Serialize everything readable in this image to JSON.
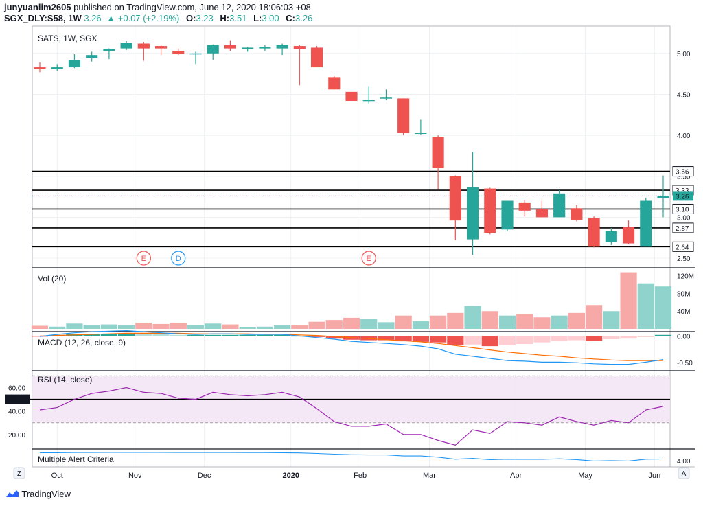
{
  "header": {
    "user": "junyuanlim2605",
    "published_text": "published on TradingView.com, June 12, 2020 18:06:03 +08",
    "symbol": "SGX_DLY:S58, 1W",
    "last": "3.26",
    "change": "▲ +0.07 (+2.19%)",
    "o_label": "O:",
    "o_val": "3.23",
    "h_label": "H:",
    "h_val": "3.51",
    "l_label": "L:",
    "l_val": "3.00",
    "c_label": "C:",
    "c_val": "3.26"
  },
  "footer": {
    "brand": "TradingView"
  },
  "colors": {
    "up": "#26a69a",
    "down": "#ef5350",
    "rsi": "#9c27b0",
    "macd": "#2196f3",
    "signal": "#ff6d00"
  },
  "chart_data": {
    "type": "candlestick",
    "title": "SATS, 1W, SGX",
    "x_labels": [
      "Oct",
      "Nov",
      "Dec",
      "2020",
      "Feb",
      "Mar",
      "Apr",
      "May",
      "Jun"
    ],
    "x_label_index": [
      1,
      5.5,
      9.5,
      14.5,
      18.5,
      22.5,
      27.5,
      31.5,
      35.5
    ],
    "price_axis": {
      "ticks": [
        "2.50",
        "3.00",
        "3.50",
        "4.00",
        "4.50",
        "5.00"
      ],
      "range": [
        2.45,
        5.3
      ]
    },
    "horizontal_levels": [
      "3.56",
      "3.33",
      "3.10",
      "2.87",
      "2.64"
    ],
    "last_price_label": "3.26",
    "event_markers": [
      {
        "label": "E",
        "index": 6,
        "color": "#ef5350"
      },
      {
        "label": "D",
        "index": 8,
        "color": "#2196f3"
      },
      {
        "label": "E",
        "index": 19,
        "color": "#ef5350"
      }
    ],
    "ohlc": [
      [
        4.83,
        4.89,
        4.77,
        4.81
      ],
      [
        4.81,
        4.87,
        4.78,
        4.83
      ],
      [
        4.83,
        4.99,
        4.82,
        4.92
      ],
      [
        4.94,
        5.02,
        4.9,
        4.98
      ],
      [
        5.03,
        5.06,
        4.93,
        5.05
      ],
      [
        5.06,
        5.15,
        5.04,
        5.13
      ],
      [
        5.12,
        5.14,
        4.91,
        5.06
      ],
      [
        5.09,
        5.1,
        4.98,
        5.06
      ],
      [
        5.03,
        5.06,
        4.98,
        4.99
      ],
      [
        4.99,
        5.02,
        4.87,
        5.0
      ],
      [
        5.0,
        5.11,
        4.92,
        5.1
      ],
      [
        5.1,
        5.16,
        5.03,
        5.06
      ],
      [
        5.05,
        5.08,
        5.02,
        5.07
      ],
      [
        5.06,
        5.1,
        5.03,
        5.08
      ],
      [
        5.06,
        5.12,
        4.98,
        5.1
      ],
      [
        5.09,
        5.1,
        4.61,
        5.05
      ],
      [
        5.07,
        5.09,
        4.83,
        4.83
      ],
      [
        4.71,
        4.73,
        4.56,
        4.56
      ],
      [
        4.53,
        4.53,
        4.42,
        4.42
      ],
      [
        4.42,
        4.6,
        4.39,
        4.43
      ],
      [
        4.45,
        4.56,
        4.43,
        4.46
      ],
      [
        4.45,
        4.45,
        4.0,
        4.03
      ],
      [
        4.03,
        4.19,
        4.01,
        4.03
      ],
      [
        3.98,
        4.0,
        3.34,
        3.6
      ],
      [
        3.5,
        3.51,
        2.72,
        2.96
      ],
      [
        2.73,
        3.8,
        2.54,
        3.37
      ],
      [
        3.35,
        3.36,
        2.79,
        2.81
      ],
      [
        2.85,
        3.2,
        2.83,
        3.2
      ],
      [
        3.18,
        3.21,
        3.01,
        3.08
      ],
      [
        3.1,
        3.2,
        3.0,
        3.0
      ],
      [
        3.0,
        3.33,
        3.0,
        3.29
      ],
      [
        3.11,
        3.15,
        2.95,
        2.97
      ],
      [
        2.99,
        3.01,
        2.63,
        2.64
      ],
      [
        2.7,
        2.87,
        2.66,
        2.83
      ],
      [
        2.88,
        2.96,
        2.67,
        2.68
      ],
      [
        2.64,
        3.24,
        2.64,
        3.2
      ],
      [
        3.23,
        3.51,
        3.0,
        3.26
      ]
    ],
    "volume": {
      "label": "Vol (20)",
      "ticks": [
        "40M",
        "80M",
        "120M"
      ],
      "values": [
        7,
        5,
        12,
        9,
        10,
        9,
        14,
        11,
        14,
        8,
        12,
        10,
        4,
        5,
        9,
        9,
        16,
        20,
        25,
        23,
        15,
        30,
        17,
        30,
        36,
        52,
        40,
        30,
        34,
        26,
        30,
        36,
        54,
        40,
        128,
        103,
        96
      ]
    },
    "macd": {
      "label": "MACD (12, 26, close, 9)",
      "ticks": [
        "0.00",
        "-0.50"
      ],
      "range": [
        -0.6,
        0.03
      ],
      "histogram": [
        -0.01,
        0.02,
        0.03,
        0.03,
        0.04,
        0.05,
        0.04,
        0.03,
        0.02,
        0.02,
        0.02,
        0.02,
        0.02,
        0.02,
        0.02,
        0.0,
        -0.02,
        -0.05,
        -0.07,
        -0.08,
        -0.08,
        -0.1,
        -0.11,
        -0.12,
        -0.17,
        -0.16,
        -0.19,
        -0.17,
        -0.15,
        -0.12,
        -0.09,
        -0.08,
        -0.09,
        -0.06,
        -0.05,
        -0.02,
        0.02
      ],
      "macd_line": [
        -0.01,
        0.03,
        0.06,
        0.08,
        0.09,
        0.1,
        0.08,
        0.06,
        0.04,
        0.03,
        0.04,
        0.04,
        0.03,
        0.03,
        0.03,
        0.0,
        -0.03,
        -0.06,
        -0.1,
        -0.12,
        -0.14,
        -0.16,
        -0.19,
        -0.24,
        -0.34,
        -0.38,
        -0.42,
        -0.46,
        -0.47,
        -0.49,
        -0.49,
        -0.5,
        -0.52,
        -0.53,
        -0.53,
        -0.49,
        -0.44
      ],
      "signal_line": [
        0.0,
        0.01,
        0.02,
        0.03,
        0.04,
        0.05,
        0.05,
        0.05,
        0.05,
        0.04,
        0.04,
        0.04,
        0.04,
        0.03,
        0.03,
        0.02,
        0.01,
        -0.01,
        -0.03,
        -0.05,
        -0.07,
        -0.09,
        -0.11,
        -0.14,
        -0.18,
        -0.22,
        -0.26,
        -0.3,
        -0.33,
        -0.36,
        -0.38,
        -0.41,
        -0.43,
        -0.45,
        -0.46,
        -0.46,
        -0.46
      ]
    },
    "rsi": {
      "label": "RSI (14, close)",
      "ticks": [
        "60.00",
        "40.00",
        "20.00"
      ],
      "highlight_label": "50.00",
      "band": [
        30,
        70
      ],
      "range": [
        10,
        72
      ],
      "values": [
        41,
        43,
        50,
        55,
        57,
        60,
        56,
        55,
        51,
        50,
        56,
        54,
        53,
        54,
        56,
        52,
        42,
        31,
        27,
        27,
        29,
        20,
        20,
        15,
        11,
        24,
        21,
        31,
        30,
        28,
        35,
        31,
        28,
        32,
        30,
        41,
        44
      ]
    },
    "alert": {
      "label": "Multiple Alert Criteria",
      "ticks": [
        "4.00"
      ],
      "range": [
        3.5,
        5.2
      ],
      "values": [
        5.0,
        5.0,
        5.02,
        5.02,
        5.03,
        5.04,
        5.04,
        5.03,
        5.02,
        5.02,
        5.02,
        5.02,
        5.01,
        5.01,
        5.0,
        4.97,
        4.9,
        4.82,
        4.75,
        4.72,
        4.72,
        4.6,
        4.6,
        4.45,
        4.2,
        4.3,
        4.15,
        4.2,
        4.18,
        4.18,
        4.25,
        4.15,
        3.98,
        4.02,
        3.98,
        4.2,
        4.22
      ]
    },
    "corner_buttons": [
      "Z",
      "A"
    ]
  }
}
